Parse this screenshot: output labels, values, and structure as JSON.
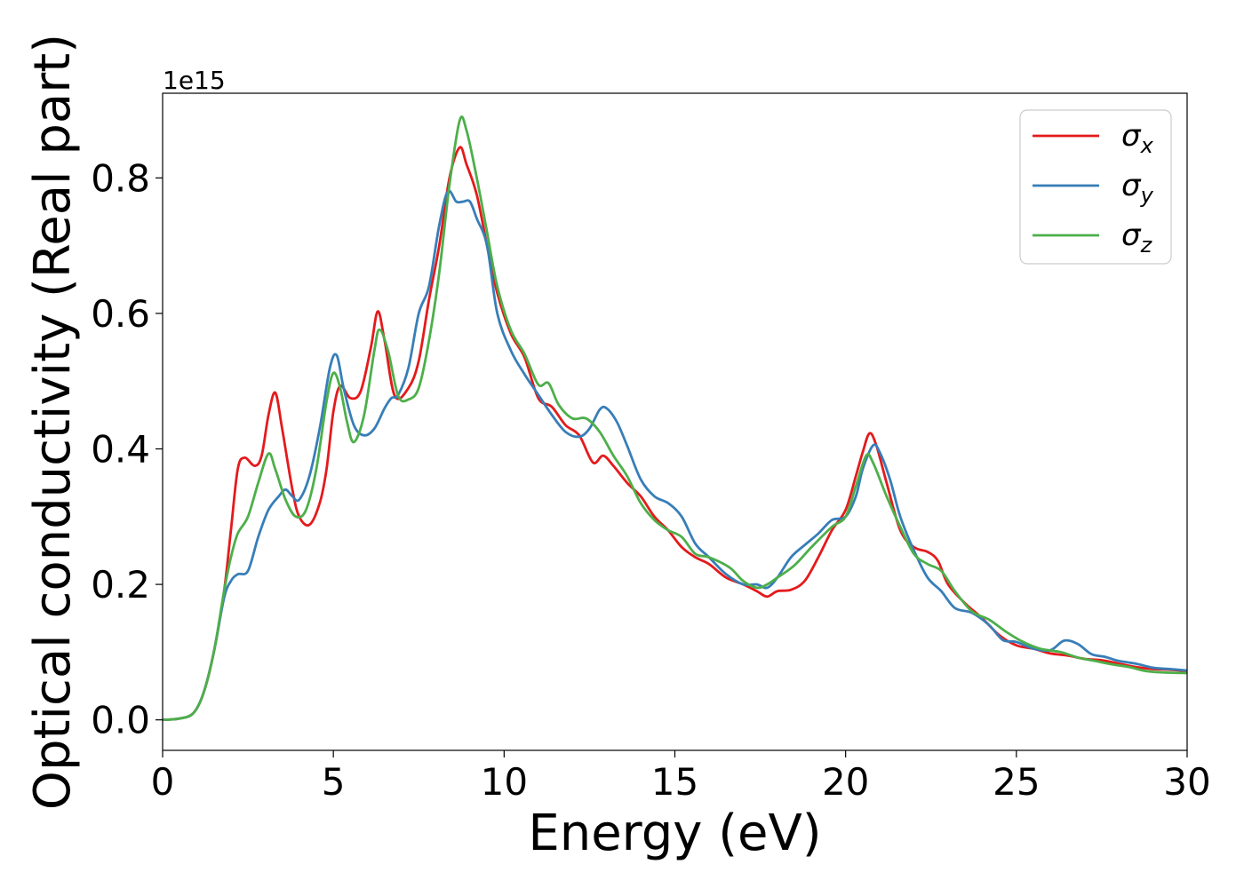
{
  "chart_data": {
    "type": "line",
    "xlabel": "Energy (eV)",
    "ylabel": "Optical conductivity (Real part)",
    "y_offset_label": "1e15",
    "xlim": [
      0,
      30
    ],
    "ylim": [
      -0.045,
      0.925
    ],
    "x_ticks": [
      0,
      5,
      10,
      15,
      20,
      25,
      30
    ],
    "x_tick_labels": [
      "0",
      "5",
      "10",
      "15",
      "20",
      "25",
      "30"
    ],
    "y_ticks": [
      0.0,
      0.2,
      0.4,
      0.6,
      0.8
    ],
    "y_tick_labels": [
      "0.0",
      "0.2",
      "0.4",
      "0.6",
      "0.8"
    ],
    "grid": false,
    "legend_position": "top-right",
    "colors": {
      "sigma_x": "#e41a1c",
      "sigma_y": "#377eb8",
      "sigma_z": "#4daf4a"
    },
    "series": [
      {
        "name": "σx",
        "name_base": "σ",
        "name_sub": "x",
        "color": "#e41a1c",
        "points": [
          [
            0,
            0
          ],
          [
            0.5,
            0.002
          ],
          [
            0.9,
            0.01
          ],
          [
            1.2,
            0.04
          ],
          [
            1.5,
            0.1
          ],
          [
            1.8,
            0.19
          ],
          [
            2.0,
            0.28
          ],
          [
            2.2,
            0.37
          ],
          [
            2.4,
            0.387
          ],
          [
            2.7,
            0.375
          ],
          [
            2.9,
            0.39
          ],
          [
            3.1,
            0.45
          ],
          [
            3.3,
            0.483
          ],
          [
            3.5,
            0.43
          ],
          [
            3.8,
            0.34
          ],
          [
            4.0,
            0.3
          ],
          [
            4.3,
            0.288
          ],
          [
            4.6,
            0.32
          ],
          [
            4.8,
            0.37
          ],
          [
            5.0,
            0.455
          ],
          [
            5.2,
            0.493
          ],
          [
            5.5,
            0.475
          ],
          [
            5.8,
            0.485
          ],
          [
            6.1,
            0.55
          ],
          [
            6.3,
            0.603
          ],
          [
            6.5,
            0.56
          ],
          [
            6.8,
            0.478
          ],
          [
            7.2,
            0.49
          ],
          [
            7.5,
            0.53
          ],
          [
            7.8,
            0.62
          ],
          [
            8.1,
            0.7
          ],
          [
            8.4,
            0.8
          ],
          [
            8.7,
            0.845
          ],
          [
            8.9,
            0.82
          ],
          [
            9.2,
            0.775
          ],
          [
            9.5,
            0.7
          ],
          [
            9.8,
            0.63
          ],
          [
            10.2,
            0.57
          ],
          [
            10.6,
            0.535
          ],
          [
            11.0,
            0.475
          ],
          [
            11.4,
            0.462
          ],
          [
            11.8,
            0.435
          ],
          [
            12.2,
            0.42
          ],
          [
            12.6,
            0.38
          ],
          [
            12.9,
            0.39
          ],
          [
            13.2,
            0.375
          ],
          [
            13.6,
            0.35
          ],
          [
            14.0,
            0.33
          ],
          [
            14.4,
            0.3
          ],
          [
            14.8,
            0.28
          ],
          [
            15.2,
            0.255
          ],
          [
            15.6,
            0.24
          ],
          [
            16.0,
            0.23
          ],
          [
            16.5,
            0.21
          ],
          [
            17.0,
            0.2
          ],
          [
            17.4,
            0.19
          ],
          [
            17.7,
            0.182
          ],
          [
            18.0,
            0.19
          ],
          [
            18.4,
            0.192
          ],
          [
            18.8,
            0.205
          ],
          [
            19.2,
            0.24
          ],
          [
            19.6,
            0.28
          ],
          [
            20.0,
            0.31
          ],
          [
            20.3,
            0.36
          ],
          [
            20.5,
            0.395
          ],
          [
            20.7,
            0.423
          ],
          [
            20.9,
            0.405
          ],
          [
            21.2,
            0.35
          ],
          [
            21.6,
            0.28
          ],
          [
            22.0,
            0.255
          ],
          [
            22.4,
            0.248
          ],
          [
            22.7,
            0.235
          ],
          [
            23.0,
            0.2
          ],
          [
            23.5,
            0.172
          ],
          [
            24.0,
            0.15
          ],
          [
            24.5,
            0.125
          ],
          [
            25.0,
            0.11
          ],
          [
            25.5,
            0.105
          ],
          [
            26.0,
            0.098
          ],
          [
            26.5,
            0.095
          ],
          [
            27.0,
            0.09
          ],
          [
            27.5,
            0.088
          ],
          [
            28.0,
            0.083
          ],
          [
            28.5,
            0.078
          ],
          [
            29.0,
            0.075
          ],
          [
            29.5,
            0.074
          ],
          [
            30.0,
            0.072
          ]
        ]
      },
      {
        "name": "σy",
        "name_base": "σ",
        "name_sub": "y",
        "color": "#377eb8",
        "points": [
          [
            0,
            0
          ],
          [
            0.5,
            0.002
          ],
          [
            0.9,
            0.01
          ],
          [
            1.2,
            0.04
          ],
          [
            1.5,
            0.1
          ],
          [
            1.8,
            0.18
          ],
          [
            2.0,
            0.205
          ],
          [
            2.2,
            0.215
          ],
          [
            2.5,
            0.22
          ],
          [
            2.8,
            0.27
          ],
          [
            3.1,
            0.31
          ],
          [
            3.4,
            0.33
          ],
          [
            3.6,
            0.34
          ],
          [
            3.8,
            0.33
          ],
          [
            4.0,
            0.325
          ],
          [
            4.3,
            0.36
          ],
          [
            4.6,
            0.43
          ],
          [
            4.9,
            0.52
          ],
          [
            5.1,
            0.538
          ],
          [
            5.3,
            0.49
          ],
          [
            5.6,
            0.435
          ],
          [
            5.9,
            0.42
          ],
          [
            6.2,
            0.43
          ],
          [
            6.5,
            0.46
          ],
          [
            6.7,
            0.475
          ],
          [
            6.9,
            0.48
          ],
          [
            7.2,
            0.52
          ],
          [
            7.5,
            0.6
          ],
          [
            7.8,
            0.64
          ],
          [
            8.1,
            0.73
          ],
          [
            8.35,
            0.78
          ],
          [
            8.6,
            0.765
          ],
          [
            8.8,
            0.765
          ],
          [
            9.0,
            0.765
          ],
          [
            9.2,
            0.74
          ],
          [
            9.5,
            0.7
          ],
          [
            9.8,
            0.6
          ],
          [
            10.2,
            0.545
          ],
          [
            10.6,
            0.51
          ],
          [
            11.0,
            0.48
          ],
          [
            11.4,
            0.45
          ],
          [
            11.8,
            0.425
          ],
          [
            12.2,
            0.418
          ],
          [
            12.5,
            0.43
          ],
          [
            12.8,
            0.458
          ],
          [
            13.0,
            0.46
          ],
          [
            13.3,
            0.44
          ],
          [
            13.6,
            0.405
          ],
          [
            14.0,
            0.355
          ],
          [
            14.4,
            0.33
          ],
          [
            14.8,
            0.32
          ],
          [
            15.2,
            0.3
          ],
          [
            15.6,
            0.26
          ],
          [
            16.0,
            0.24
          ],
          [
            16.5,
            0.215
          ],
          [
            17.0,
            0.2
          ],
          [
            17.4,
            0.2
          ],
          [
            17.7,
            0.195
          ],
          [
            18.0,
            0.21
          ],
          [
            18.4,
            0.24
          ],
          [
            18.8,
            0.258
          ],
          [
            19.2,
            0.275
          ],
          [
            19.6,
            0.295
          ],
          [
            20.0,
            0.3
          ],
          [
            20.3,
            0.33
          ],
          [
            20.5,
            0.37
          ],
          [
            20.8,
            0.405
          ],
          [
            21.0,
            0.395
          ],
          [
            21.3,
            0.355
          ],
          [
            21.6,
            0.3
          ],
          [
            22.0,
            0.25
          ],
          [
            22.4,
            0.21
          ],
          [
            22.8,
            0.19
          ],
          [
            23.2,
            0.165
          ],
          [
            23.7,
            0.158
          ],
          [
            24.2,
            0.14
          ],
          [
            24.6,
            0.118
          ],
          [
            25.0,
            0.115
          ],
          [
            25.5,
            0.105
          ],
          [
            26.0,
            0.103
          ],
          [
            26.4,
            0.117
          ],
          [
            26.8,
            0.112
          ],
          [
            27.2,
            0.097
          ],
          [
            27.6,
            0.093
          ],
          [
            28.0,
            0.087
          ],
          [
            28.5,
            0.083
          ],
          [
            29.0,
            0.077
          ],
          [
            29.5,
            0.075
          ],
          [
            30.0,
            0.073
          ]
        ]
      },
      {
        "name": "σz",
        "name_base": "σ",
        "name_sub": "z",
        "color": "#4daf4a",
        "points": [
          [
            0,
            0
          ],
          [
            0.5,
            0.002
          ],
          [
            0.9,
            0.01
          ],
          [
            1.2,
            0.04
          ],
          [
            1.5,
            0.1
          ],
          [
            1.8,
            0.19
          ],
          [
            2.0,
            0.24
          ],
          [
            2.2,
            0.275
          ],
          [
            2.5,
            0.3
          ],
          [
            2.8,
            0.35
          ],
          [
            3.1,
            0.393
          ],
          [
            3.3,
            0.37
          ],
          [
            3.6,
            0.325
          ],
          [
            3.9,
            0.3
          ],
          [
            4.2,
            0.31
          ],
          [
            4.5,
            0.37
          ],
          [
            4.8,
            0.47
          ],
          [
            5.0,
            0.512
          ],
          [
            5.2,
            0.49
          ],
          [
            5.4,
            0.44
          ],
          [
            5.6,
            0.41
          ],
          [
            5.9,
            0.45
          ],
          [
            6.2,
            0.545
          ],
          [
            6.35,
            0.576
          ],
          [
            6.6,
            0.545
          ],
          [
            6.9,
            0.478
          ],
          [
            7.2,
            0.473
          ],
          [
            7.5,
            0.49
          ],
          [
            7.8,
            0.56
          ],
          [
            8.1,
            0.66
          ],
          [
            8.4,
            0.79
          ],
          [
            8.7,
            0.885
          ],
          [
            8.9,
            0.87
          ],
          [
            9.2,
            0.8
          ],
          [
            9.5,
            0.72
          ],
          [
            9.8,
            0.64
          ],
          [
            10.2,
            0.575
          ],
          [
            10.6,
            0.54
          ],
          [
            11.0,
            0.495
          ],
          [
            11.3,
            0.497
          ],
          [
            11.6,
            0.465
          ],
          [
            12.0,
            0.445
          ],
          [
            12.4,
            0.445
          ],
          [
            12.8,
            0.425
          ],
          [
            13.2,
            0.39
          ],
          [
            13.6,
            0.36
          ],
          [
            14.0,
            0.32
          ],
          [
            14.4,
            0.295
          ],
          [
            14.8,
            0.28
          ],
          [
            15.2,
            0.27
          ],
          [
            15.6,
            0.245
          ],
          [
            16.0,
            0.24
          ],
          [
            16.6,
            0.225
          ],
          [
            17.0,
            0.205
          ],
          [
            17.4,
            0.195
          ],
          [
            17.7,
            0.2
          ],
          [
            18.0,
            0.21
          ],
          [
            18.5,
            0.228
          ],
          [
            19.0,
            0.255
          ],
          [
            19.6,
            0.285
          ],
          [
            20.0,
            0.3
          ],
          [
            20.3,
            0.345
          ],
          [
            20.6,
            0.39
          ],
          [
            20.8,
            0.38
          ],
          [
            21.2,
            0.33
          ],
          [
            21.6,
            0.285
          ],
          [
            22.0,
            0.245
          ],
          [
            22.4,
            0.23
          ],
          [
            22.8,
            0.22
          ],
          [
            23.2,
            0.19
          ],
          [
            23.7,
            0.16
          ],
          [
            24.2,
            0.148
          ],
          [
            24.7,
            0.13
          ],
          [
            25.2,
            0.115
          ],
          [
            25.7,
            0.105
          ],
          [
            26.3,
            0.1
          ],
          [
            26.8,
            0.092
          ],
          [
            27.3,
            0.087
          ],
          [
            27.8,
            0.082
          ],
          [
            28.3,
            0.078
          ],
          [
            28.8,
            0.072
          ],
          [
            29.3,
            0.07
          ],
          [
            30.0,
            0.069
          ]
        ]
      }
    ]
  }
}
